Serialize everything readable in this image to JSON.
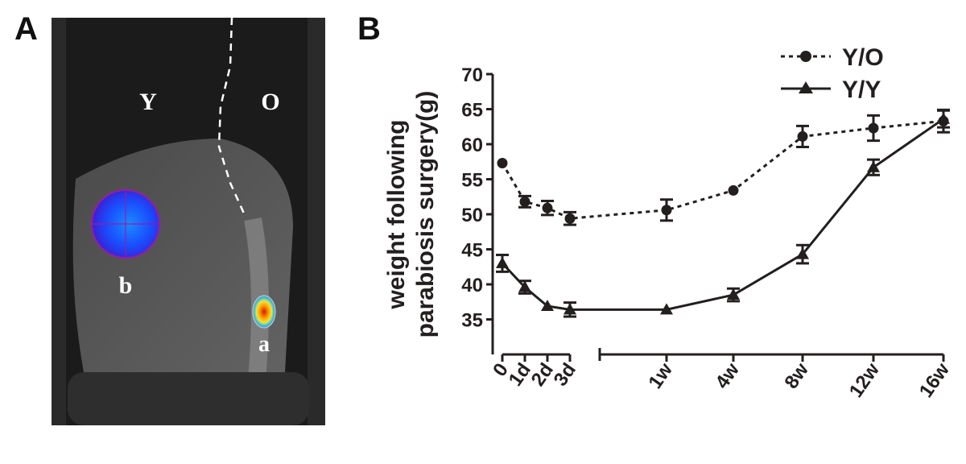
{
  "panels": {
    "a": "A",
    "b": "B"
  },
  "photo": {
    "labels": {
      "left_animal": "Y",
      "right_animal": "O",
      "signal_b": "b",
      "signal_a": "a"
    }
  },
  "chart_data": {
    "type": "line",
    "title": "",
    "xlabel": "",
    "ylabel": "weight following parabiosis surgery(g)",
    "ylabel_lines": [
      "weight following",
      "parabiosis surgery(g)"
    ],
    "ylim": [
      30,
      70
    ],
    "yticks": [
      35,
      40,
      45,
      50,
      55,
      60,
      65,
      70
    ],
    "categories": [
      "0",
      "1d",
      "2d",
      "3d",
      "1w",
      "4w",
      "8w",
      "12w",
      "16w"
    ],
    "axis_break": "between 3d and 1w",
    "grid": false,
    "legend_position": "top-right",
    "series": [
      {
        "name": "Y/O",
        "marker": "circle",
        "line": "dotted",
        "values": [
          57.3,
          51.8,
          50.9,
          49.4,
          50.6,
          53.4,
          61.1,
          62.3,
          63.3
        ],
        "errors": [
          0,
          0.8,
          1.0,
          0.9,
          1.5,
          0,
          1.5,
          1.8,
          1.6
        ]
      },
      {
        "name": "Y/Y",
        "marker": "triangle",
        "line": "solid",
        "values": [
          43.0,
          39.6,
          36.9,
          36.4,
          36.4,
          38.5,
          44.3,
          56.7,
          63.6
        ],
        "errors": [
          1.2,
          0.9,
          0,
          1.0,
          0,
          0.9,
          1.3,
          1.1,
          1.2
        ]
      }
    ]
  }
}
